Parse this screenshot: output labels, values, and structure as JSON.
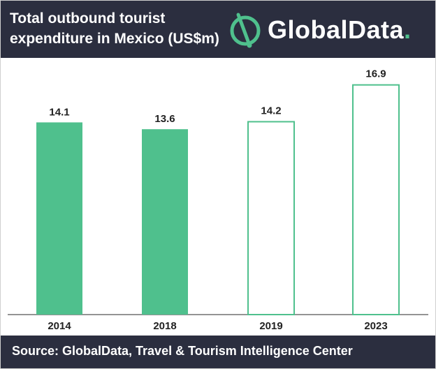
{
  "header": {
    "title": "Total outbound tourist\nexpenditure in Mexico (US$m)",
    "logo_text": "GlobalData",
    "logo_dot": ".",
    "logo_icon": "globaldata-logo-icon"
  },
  "footer": {
    "source": "Source: GlobalData, Travel & Tourism Intelligence Center"
  },
  "colors": {
    "header_bg": "#2b2e3f",
    "bar_fill": "#4fc08d",
    "bar_outline": "#4fc08d"
  },
  "chart_data": {
    "type": "bar",
    "title": "Total outbound tourist\nexpenditure in Mexico (US$m)",
    "categories": [
      "2014",
      "2018",
      "2019",
      "2023"
    ],
    "values": [
      14.1,
      13.6,
      14.2,
      16.9
    ],
    "value_labels": [
      "14.1",
      "13.6",
      "14.2",
      "16.9"
    ],
    "forecast": [
      false,
      false,
      true,
      true
    ],
    "ylim": [
      0,
      17.5
    ],
    "grid": false,
    "legend": "none"
  }
}
